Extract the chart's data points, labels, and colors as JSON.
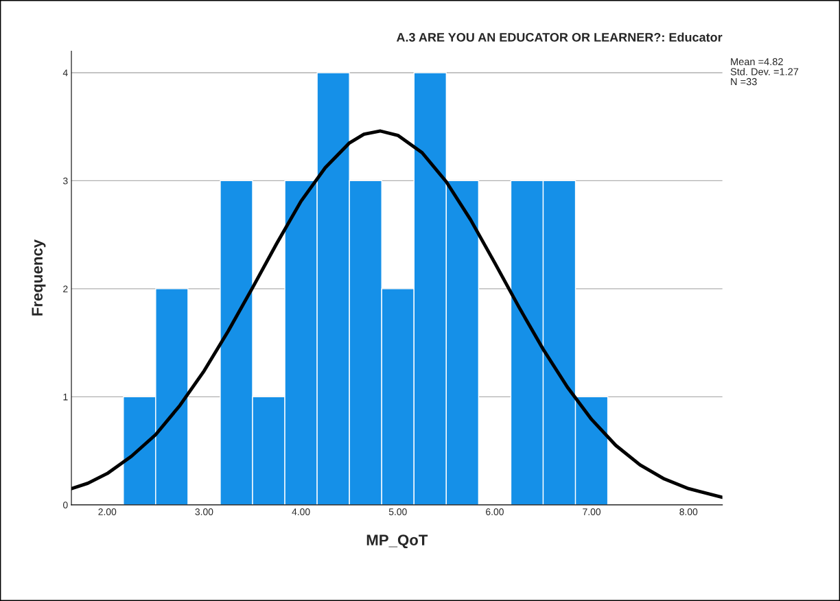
{
  "chart_data": {
    "type": "histogram",
    "title": "A.3 ARE YOU AN EDUCATOR OR LEARNER?: Educator",
    "xlabel": "MP_QoT",
    "ylabel": "Frequency",
    "bins": [
      2.1667,
      2.5,
      2.8333,
      3.1667,
      3.5,
      3.8333,
      4.1667,
      4.5,
      4.8333,
      5.1667,
      5.5,
      5.8333,
      6.1667,
      6.5,
      6.8333,
      7.1667
    ],
    "values": [
      1,
      2,
      0,
      3,
      1,
      3,
      4,
      3,
      2,
      4,
      3,
      0,
      3,
      3,
      1
    ],
    "color": "#1590e8",
    "series": [
      {
        "type": "line",
        "color": "#000000",
        "x": [
          1.63,
          1.8,
          2.0,
          2.25,
          2.5,
          2.75,
          3.0,
          3.25,
          3.5,
          3.75,
          4.0,
          4.25,
          4.5,
          4.65,
          4.82,
          5.0,
          5.25,
          5.5,
          5.75,
          6.0,
          6.25,
          6.5,
          6.75,
          7.0,
          7.25,
          7.5,
          7.75,
          8.0,
          8.35
        ],
        "values": [
          0.15,
          0.2,
          0.29,
          0.45,
          0.65,
          0.92,
          1.24,
          1.61,
          2.01,
          2.42,
          2.81,
          3.12,
          3.35,
          3.43,
          3.46,
          3.42,
          3.26,
          2.99,
          2.64,
          2.24,
          1.83,
          1.44,
          1.09,
          0.79,
          0.55,
          0.37,
          0.24,
          0.15,
          0.07
        ]
      }
    ],
    "xlim": [
      1.63,
      8.35
    ],
    "ylim": [
      0,
      4.2
    ],
    "xticks": [
      {
        "value": 2,
        "label": "2.00"
      },
      {
        "value": 3,
        "label": "3.00"
      },
      {
        "value": 4,
        "label": "4.00"
      },
      {
        "value": 5,
        "label": "5.00"
      },
      {
        "value": 6,
        "label": "6.00"
      },
      {
        "value": 7,
        "label": "7.00"
      },
      {
        "value": 8,
        "label": "8.00"
      }
    ],
    "yticks": [
      0,
      1,
      2,
      3,
      4
    ],
    "grid": "y",
    "annotations": [
      "Mean =4.82",
      "Std. Dev. =1.27",
      "N =33"
    ]
  }
}
